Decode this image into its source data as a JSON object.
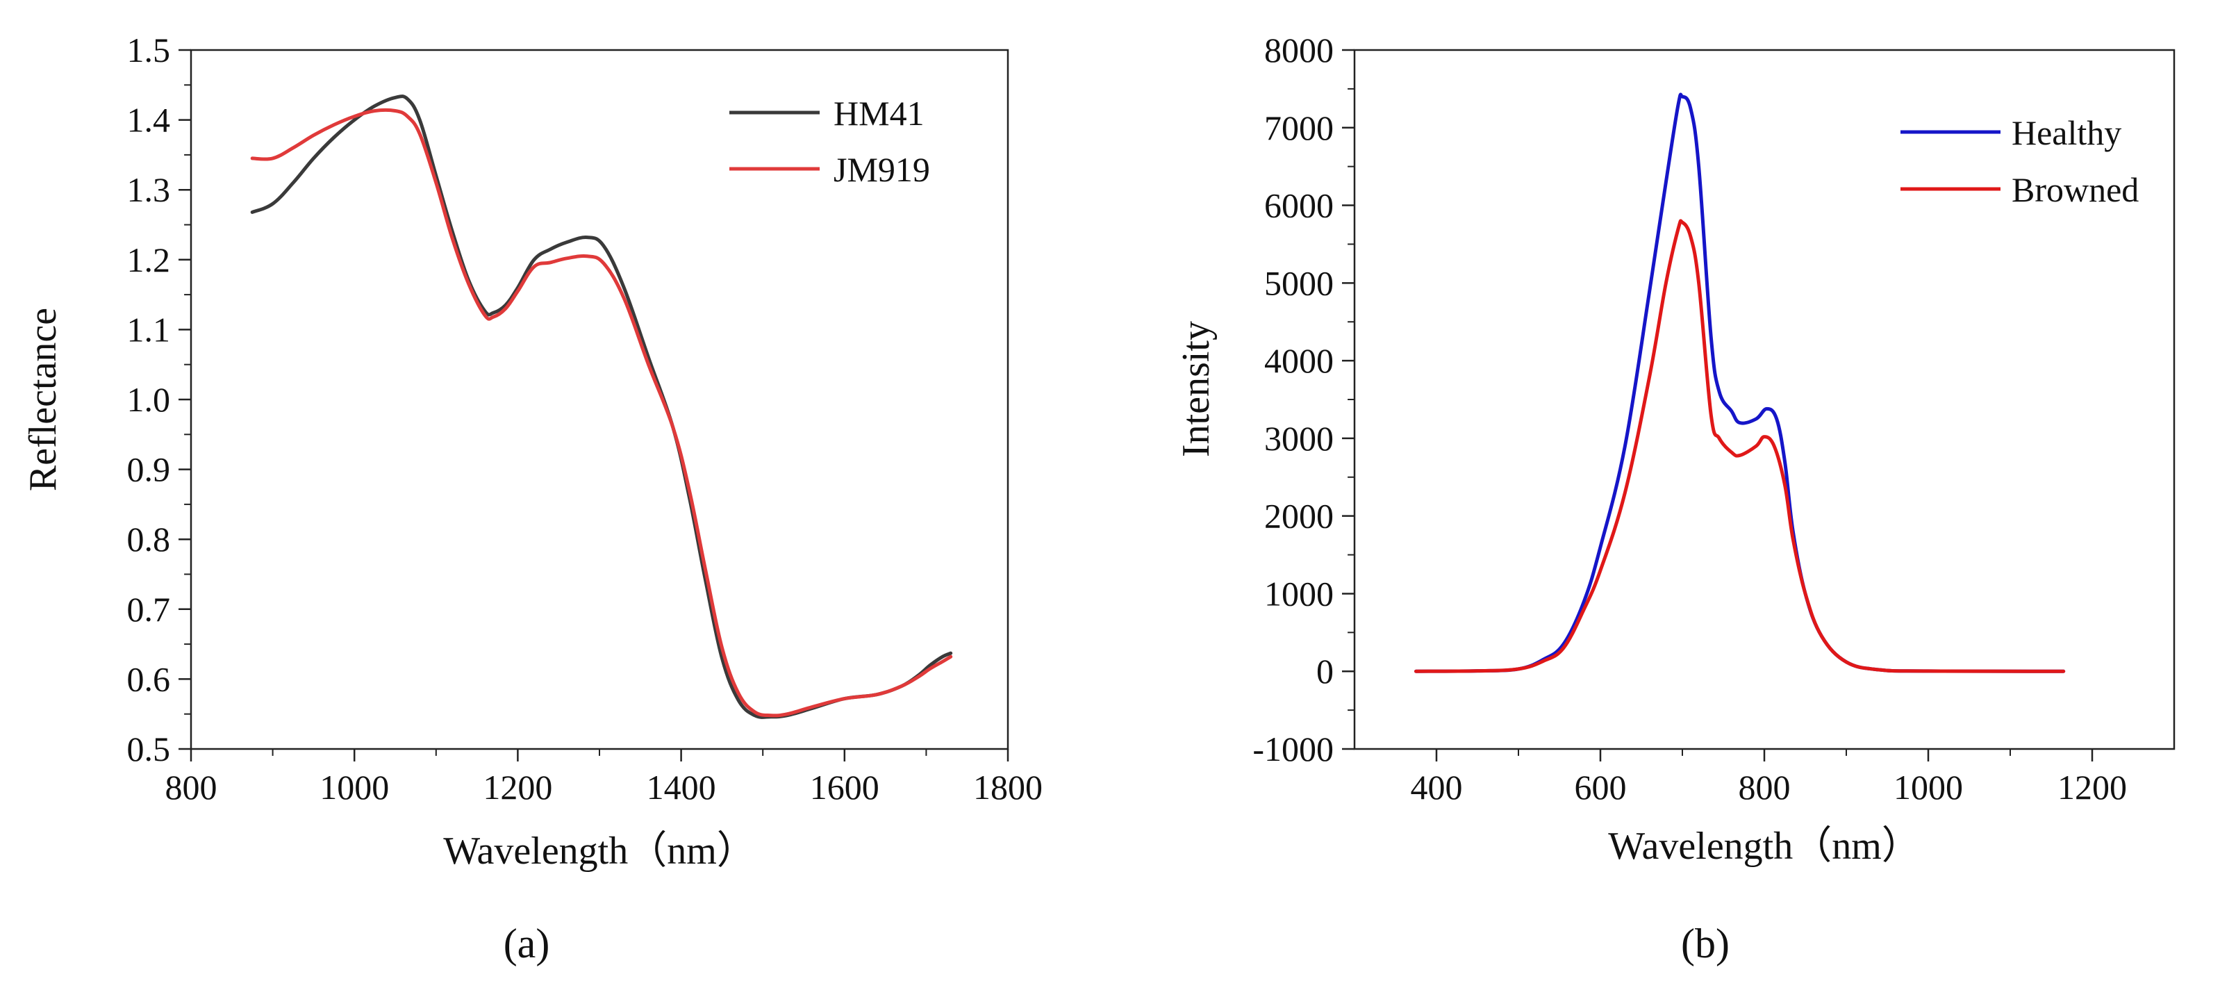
{
  "chart_data": [
    {
      "type": "line",
      "panel_label": "(a)",
      "xlabel": "Wavelength（nm）",
      "ylabel": "Reflectance",
      "xlim": [
        800,
        1800
      ],
      "ylim": [
        0.5,
        1.5
      ],
      "xticks": [
        800,
        1000,
        1200,
        1400,
        1600,
        1800
      ],
      "yticks": [
        0.5,
        0.6,
        0.7,
        0.8,
        0.9,
        1.0,
        1.1,
        1.2,
        1.3,
        1.4,
        1.5
      ],
      "ytick_decimals": 1,
      "grid": false,
      "legend_position": "top-right",
      "series": [
        {
          "name": "HM41",
          "color": "#3a3a3a",
          "points": [
            [
              875,
              1.268
            ],
            [
              900,
              1.28
            ],
            [
              925,
              1.31
            ],
            [
              950,
              1.345
            ],
            [
              975,
              1.375
            ],
            [
              1000,
              1.4
            ],
            [
              1025,
              1.42
            ],
            [
              1050,
              1.432
            ],
            [
              1065,
              1.43
            ],
            [
              1080,
              1.4
            ],
            [
              1100,
              1.32
            ],
            [
              1120,
              1.24
            ],
            [
              1140,
              1.17
            ],
            [
              1160,
              1.126
            ],
            [
              1170,
              1.124
            ],
            [
              1185,
              1.135
            ],
            [
              1200,
              1.16
            ],
            [
              1220,
              1.2
            ],
            [
              1240,
              1.215
            ],
            [
              1260,
              1.225
            ],
            [
              1285,
              1.232
            ],
            [
              1305,
              1.22
            ],
            [
              1330,
              1.16
            ],
            [
              1360,
              1.06
            ],
            [
              1390,
              0.96
            ],
            [
              1410,
              0.86
            ],
            [
              1430,
              0.74
            ],
            [
              1450,
              0.63
            ],
            [
              1470,
              0.57
            ],
            [
              1490,
              0.548
            ],
            [
              1510,
              0.546
            ],
            [
              1530,
              0.548
            ],
            [
              1560,
              0.558
            ],
            [
              1600,
              0.572
            ],
            [
              1640,
              0.578
            ],
            [
              1670,
              0.59
            ],
            [
              1690,
              0.605
            ],
            [
              1705,
              0.62
            ],
            [
              1720,
              0.632
            ],
            [
              1730,
              0.637
            ]
          ]
        },
        {
          "name": "JM919",
          "color": "#e03a3a",
          "points": [
            [
              875,
              1.345
            ],
            [
              900,
              1.345
            ],
            [
              925,
              1.36
            ],
            [
              950,
              1.378
            ],
            [
              975,
              1.393
            ],
            [
              1000,
              1.405
            ],
            [
              1025,
              1.413
            ],
            [
              1050,
              1.413
            ],
            [
              1065,
              1.405
            ],
            [
              1080,
              1.38
            ],
            [
              1100,
              1.31
            ],
            [
              1120,
              1.23
            ],
            [
              1140,
              1.165
            ],
            [
              1160,
              1.12
            ],
            [
              1170,
              1.118
            ],
            [
              1185,
              1.13
            ],
            [
              1200,
              1.155
            ],
            [
              1220,
              1.19
            ],
            [
              1240,
              1.196
            ],
            [
              1260,
              1.202
            ],
            [
              1285,
              1.205
            ],
            [
              1305,
              1.195
            ],
            [
              1330,
              1.145
            ],
            [
              1360,
              1.05
            ],
            [
              1390,
              0.96
            ],
            [
              1410,
              0.87
            ],
            [
              1430,
              0.755
            ],
            [
              1450,
              0.645
            ],
            [
              1470,
              0.58
            ],
            [
              1490,
              0.553
            ],
            [
              1510,
              0.548
            ],
            [
              1530,
              0.55
            ],
            [
              1560,
              0.56
            ],
            [
              1600,
              0.572
            ],
            [
              1640,
              0.578
            ],
            [
              1670,
              0.59
            ],
            [
              1690,
              0.603
            ],
            [
              1705,
              0.615
            ],
            [
              1720,
              0.625
            ],
            [
              1730,
              0.632
            ]
          ]
        }
      ]
    },
    {
      "type": "line",
      "panel_label": "(b)",
      "xlabel": "Wavelength（nm）",
      "ylabel": "Intensity",
      "xlim": [
        300,
        1300
      ],
      "ylim": [
        -1000,
        8000
      ],
      "xticks": [
        400,
        600,
        800,
        1000,
        1200
      ],
      "yticks": [
        -1000,
        0,
        1000,
        2000,
        3000,
        4000,
        5000,
        6000,
        7000,
        8000
      ],
      "ytick_decimals": 0,
      "grid": false,
      "legend_position": "top-right",
      "series": [
        {
          "name": "Healthy",
          "color": "#1515c8",
          "points": [
            [
              375,
              0
            ],
            [
              450,
              5
            ],
            [
              500,
              30
            ],
            [
              530,
              150
            ],
            [
              555,
              350
            ],
            [
              580,
              900
            ],
            [
              600,
              1600
            ],
            [
              630,
              2900
            ],
            [
              660,
              4900
            ],
            [
              680,
              6300
            ],
            [
              695,
              7300
            ],
            [
              700,
              7400
            ],
            [
              710,
              7250
            ],
            [
              720,
              6500
            ],
            [
              735,
              4300
            ],
            [
              745,
              3600
            ],
            [
              760,
              3350
            ],
            [
              770,
              3200
            ],
            [
              790,
              3250
            ],
            [
              803,
              3380
            ],
            [
              815,
              3250
            ],
            [
              825,
              2700
            ],
            [
              835,
              1800
            ],
            [
              850,
              1000
            ],
            [
              870,
              450
            ],
            [
              900,
              120
            ],
            [
              940,
              20
            ],
            [
              1000,
              3
            ],
            [
              1165,
              0
            ]
          ]
        },
        {
          "name": "Browned",
          "color": "#e01818",
          "points": [
            [
              375,
              0
            ],
            [
              450,
              5
            ],
            [
              500,
              30
            ],
            [
              530,
              130
            ],
            [
              555,
              300
            ],
            [
              580,
              800
            ],
            [
              600,
              1300
            ],
            [
              630,
              2300
            ],
            [
              660,
              3800
            ],
            [
              680,
              5000
            ],
            [
              695,
              5700
            ],
            [
              700,
              5780
            ],
            [
              710,
              5600
            ],
            [
              720,
              5000
            ],
            [
              735,
              3300
            ],
            [
              745,
              3000
            ],
            [
              760,
              2820
            ],
            [
              770,
              2780
            ],
            [
              790,
              2900
            ],
            [
              800,
              3020
            ],
            [
              812,
              2900
            ],
            [
              825,
              2400
            ],
            [
              835,
              1700
            ],
            [
              850,
              1000
            ],
            [
              870,
              450
            ],
            [
              900,
              120
            ],
            [
              940,
              20
            ],
            [
              1000,
              3
            ],
            [
              1165,
              0
            ]
          ]
        }
      ]
    }
  ]
}
